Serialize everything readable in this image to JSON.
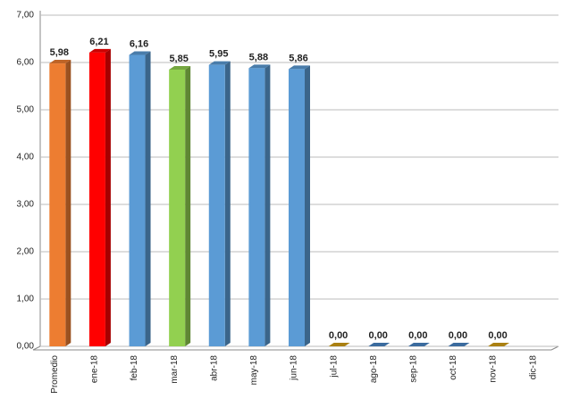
{
  "chart_data": {
    "type": "bar",
    "categories": [
      "Promedio",
      "ene-18",
      "feb-18",
      "mar-18",
      "abr-18",
      "may-18",
      "jun-18",
      "jul-18",
      "ago-18",
      "sep-18",
      "oct-18",
      "nov-18",
      "dic-18"
    ],
    "values": [
      5.98,
      6.21,
      6.16,
      5.85,
      5.95,
      5.88,
      5.86,
      0,
      0,
      0,
      0,
      0,
      null
    ],
    "value_labels": [
      "5,98",
      "6,21",
      "6,16",
      "5,85",
      "5,95",
      "5,88",
      "5,86",
      "0,00",
      "0,00",
      "0,00",
      "0,00",
      "0,00",
      null
    ],
    "colors": [
      "#ED7D31",
      "#FF0000",
      "#5B9BD5",
      "#92D050",
      "#5B9BD5",
      "#5B9BD5",
      "#5B9BD5",
      "#D4A017",
      "#4A86C5",
      "#4A86C5",
      "#4A86C5",
      "#D4A017",
      "#5B9BD5"
    ],
    "ylim": [
      0,
      7
    ],
    "yticks": [
      {
        "value": 0,
        "label": "0,00"
      },
      {
        "value": 1,
        "label": "1,00"
      },
      {
        "value": 2,
        "label": "2,00"
      },
      {
        "value": 3,
        "label": "3,00"
      },
      {
        "value": 4,
        "label": "4,00"
      },
      {
        "value": 5,
        "label": "5,00"
      },
      {
        "value": 6,
        "label": "6,00"
      },
      {
        "value": 7,
        "label": "7,00"
      }
    ],
    "grid": true
  }
}
